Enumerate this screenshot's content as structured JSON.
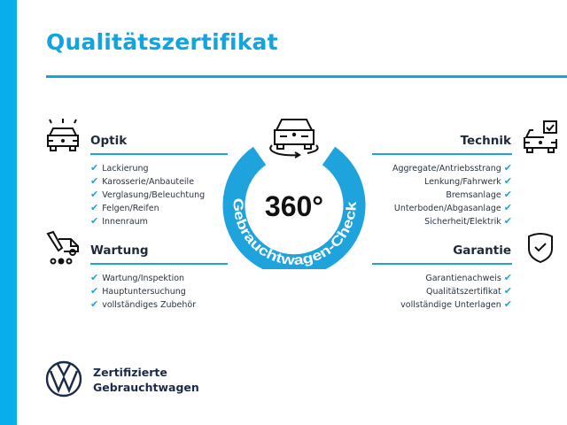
{
  "title": "Qualitätszertifikat",
  "center": {
    "big": "360°",
    "arc_text": "Gebrauchtwagen-Check"
  },
  "sections": {
    "optik": {
      "heading": "Optik",
      "items": [
        "Lackierung",
        "Karosserie/Anbauteile",
        "Verglasung/Beleuchtung",
        "Felgen/Reifen",
        "Innenraum"
      ]
    },
    "wartung": {
      "heading": "Wartung",
      "items": [
        "Wartung/Inspektion",
        "Hauptuntersuchung",
        "vollständiges Zubehör"
      ]
    },
    "technik": {
      "heading": "Technik",
      "items": [
        "Aggregate/Antriebsstrang",
        "Lenkung/Fahrwerk",
        "Bremsanlage",
        "Unterboden/Abgasanlage",
        "Sicherheit/Elektrik"
      ]
    },
    "garantie": {
      "heading": "Garantie",
      "items": [
        "Garantienachweis",
        "Qualitätszertifikat",
        "vollständige Unterlagen"
      ]
    }
  },
  "check_glyph": "✔",
  "brand": {
    "line1": "Zertifizierte",
    "line2": "Gebrauchtwagen",
    "logo": "VW"
  },
  "colors": {
    "accent": "#1fa3dd",
    "sidebar": "#08aeec",
    "text": "#1e2a3a"
  }
}
